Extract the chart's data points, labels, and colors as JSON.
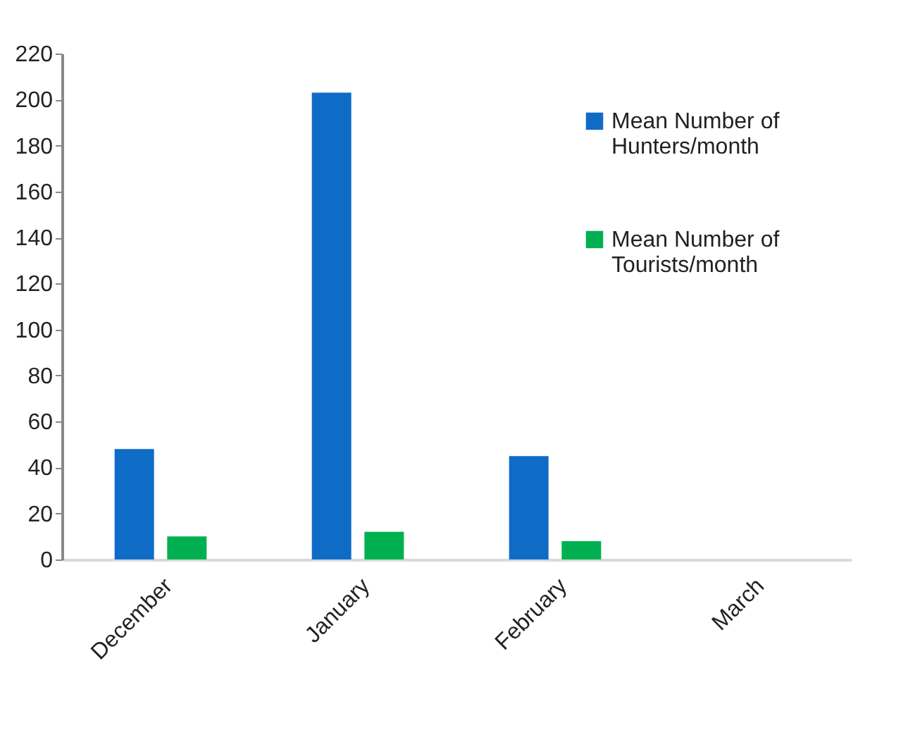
{
  "chart_data": {
    "type": "bar",
    "categories": [
      "December",
      "January",
      "February",
      "March"
    ],
    "series": [
      {
        "name": "Mean Number of Hunters/month",
        "color": "#0f6cc6",
        "values": [
          48,
          203,
          45,
          null
        ]
      },
      {
        "name": "Mean Number of Tourists/month",
        "color": "#00b050",
        "values": [
          10,
          12,
          8,
          null
        ]
      }
    ],
    "ylim": [
      0,
      220
    ],
    "yticks": [
      0,
      20,
      40,
      60,
      80,
      100,
      120,
      140,
      160,
      180,
      200,
      220
    ],
    "grid": false,
    "legend": "top right"
  }
}
